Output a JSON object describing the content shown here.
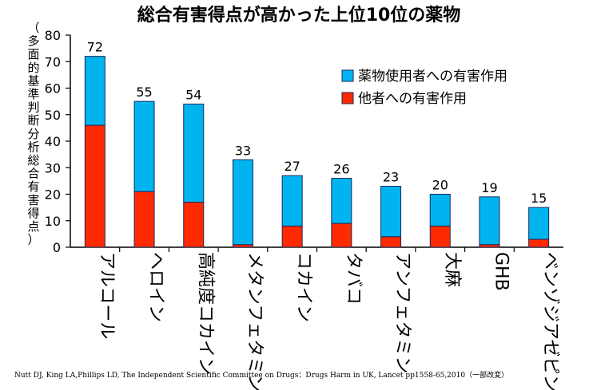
{
  "chart_data": {
    "type": "bar",
    "stacked": true,
    "title": "総合有害得点が高かった上位10位の薬物",
    "ylabel": "（多面的基準判断分析総合有害得点）",
    "ylim": [
      0,
      80
    ],
    "yticks": [
      0,
      10,
      20,
      30,
      40,
      50,
      60,
      70,
      80
    ],
    "categories": [
      "アルコール",
      "ヘロイン",
      "高純度コカイン",
      "メタンフェタミン",
      "コカイン",
      "タバコ",
      "アンフェタミン",
      "大麻",
      "GHB",
      "ベンゾジアゼピン"
    ],
    "totals": [
      72,
      55,
      54,
      33,
      27,
      26,
      23,
      20,
      19,
      15
    ],
    "series": [
      {
        "name": "他者への有害作用",
        "color": "#ff2a00",
        "values": [
          46,
          21,
          17,
          1,
          8,
          9,
          4,
          8,
          1,
          3
        ]
      },
      {
        "name": "薬物使用者への有害作用",
        "color": "#00b4f0",
        "values": [
          26,
          34,
          37,
          32,
          19,
          17,
          19,
          12,
          18,
          12
        ]
      }
    ],
    "legend_position": "top-right",
    "grid": false
  },
  "source": "Nutt DJ, King LA,Phillips LD, The Independent Scientific Committee on Drugs：Drugs Harm in UK, Lancet  pp1558-65,2010（一部改変）"
}
